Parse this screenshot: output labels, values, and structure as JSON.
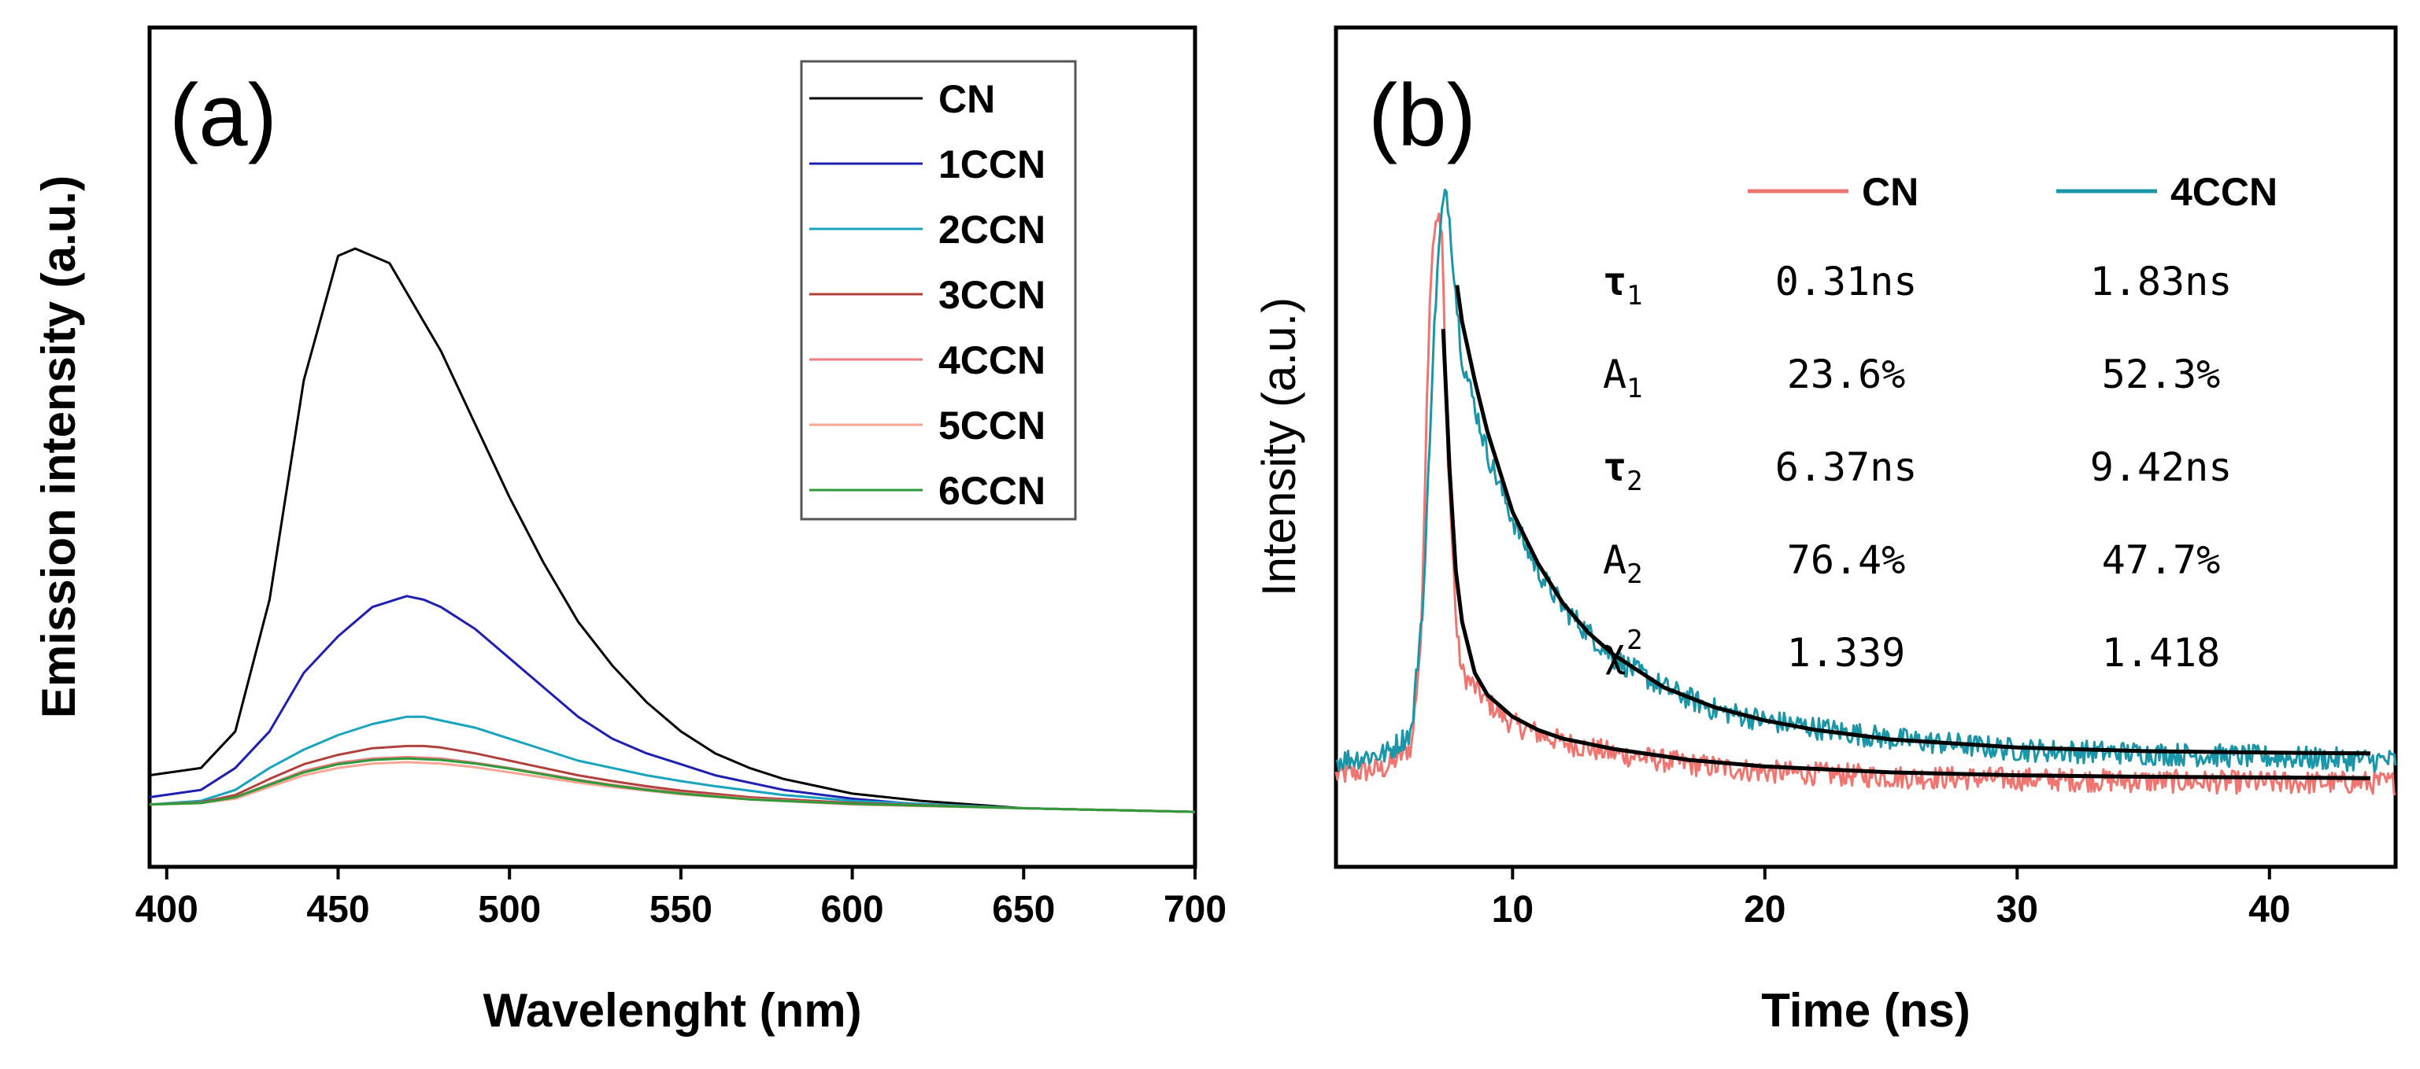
{
  "chart_data": [
    {
      "type": "line",
      "panel_label": "(a)",
      "xlabel": "Wavelenght (nm)",
      "ylabel": "Emission intensity (a.u.)",
      "xlim": [
        395,
        700
      ],
      "ylim": [
        0,
        100
      ],
      "xticks": [
        400,
        450,
        500,
        550,
        600,
        650,
        700
      ],
      "yticks_shown": false,
      "legend_position": "top-right",
      "series": [
        {
          "name": "CN",
          "color": "#000000",
          "points": [
            [
              395,
              8
            ],
            [
              410,
              9
            ],
            [
              420,
              14
            ],
            [
              430,
              32
            ],
            [
              440,
              62
            ],
            [
              450,
              79
            ],
            [
              455,
              80
            ],
            [
              465,
              78
            ],
            [
              475,
              70
            ],
            [
              480,
              66
            ],
            [
              490,
              56
            ],
            [
              500,
              46
            ],
            [
              510,
              37
            ],
            [
              520,
              29
            ],
            [
              530,
              23
            ],
            [
              540,
              18
            ],
            [
              550,
              14
            ],
            [
              560,
              11
            ],
            [
              570,
              9
            ],
            [
              580,
              7.5
            ],
            [
              600,
              5.5
            ],
            [
              620,
              4.5
            ],
            [
              650,
              3.5
            ],
            [
              700,
              3
            ]
          ]
        },
        {
          "name": "1CCN",
          "color": "#1f1fb0",
          "points": [
            [
              395,
              5
            ],
            [
              410,
              6
            ],
            [
              420,
              9
            ],
            [
              430,
              14
            ],
            [
              440,
              22
            ],
            [
              450,
              27
            ],
            [
              460,
              31
            ],
            [
              470,
              32.5
            ],
            [
              475,
              32
            ],
            [
              480,
              31
            ],
            [
              490,
              28
            ],
            [
              500,
              24
            ],
            [
              510,
              20
            ],
            [
              520,
              16
            ],
            [
              530,
              13
            ],
            [
              540,
              11
            ],
            [
              550,
              9.5
            ],
            [
              560,
              8
            ],
            [
              580,
              6
            ],
            [
              600,
              4.8
            ],
            [
              620,
              4
            ],
            [
              650,
              3.5
            ],
            [
              700,
              3
            ]
          ]
        },
        {
          "name": "2CCN",
          "color": "#1aa3bf",
          "points": [
            [
              395,
              4
            ],
            [
              410,
              4.5
            ],
            [
              420,
              6
            ],
            [
              430,
              9
            ],
            [
              440,
              11.5
            ],
            [
              450,
              13.5
            ],
            [
              460,
              15
            ],
            [
              470,
              16
            ],
            [
              475,
              16
            ],
            [
              480,
              15.5
            ],
            [
              490,
              14.5
            ],
            [
              500,
              13
            ],
            [
              510,
              11.5
            ],
            [
              520,
              10
            ],
            [
              530,
              9
            ],
            [
              540,
              8
            ],
            [
              550,
              7.2
            ],
            [
              560,
              6.5
            ],
            [
              580,
              5.3
            ],
            [
              600,
              4.5
            ],
            [
              650,
              3.5
            ],
            [
              700,
              3
            ]
          ]
        },
        {
          "name": "3CCN",
          "color": "#b0413b",
          "points": [
            [
              395,
              4
            ],
            [
              410,
              4.3
            ],
            [
              420,
              5.3
            ],
            [
              430,
              7.5
            ],
            [
              440,
              9.5
            ],
            [
              450,
              10.8
            ],
            [
              460,
              11.7
            ],
            [
              470,
              12
            ],
            [
              475,
              12
            ],
            [
              480,
              11.8
            ],
            [
              490,
              11
            ],
            [
              500,
              10
            ],
            [
              510,
              9
            ],
            [
              520,
              8
            ],
            [
              530,
              7.2
            ],
            [
              540,
              6.5
            ],
            [
              550,
              5.9
            ],
            [
              570,
              5
            ],
            [
              600,
              4.2
            ],
            [
              650,
              3.5
            ],
            [
              700,
              3
            ]
          ]
        },
        {
          "name": "4CCN",
          "color": "#e87d82",
          "points": [
            [
              395,
              4
            ],
            [
              410,
              4.2
            ],
            [
              420,
              5
            ],
            [
              430,
              6.8
            ],
            [
              440,
              8.6
            ],
            [
              450,
              9.7
            ],
            [
              460,
              10.3
            ],
            [
              470,
              10.5
            ],
            [
              480,
              10.3
            ],
            [
              490,
              9.7
            ],
            [
              500,
              9
            ],
            [
              510,
              8.2
            ],
            [
              520,
              7.4
            ],
            [
              530,
              6.7
            ],
            [
              540,
              6.1
            ],
            [
              550,
              5.6
            ],
            [
              570,
              4.8
            ],
            [
              600,
              4.1
            ],
            [
              650,
              3.5
            ],
            [
              700,
              3
            ]
          ]
        },
        {
          "name": "5CCN",
          "color": "#f7a594",
          "points": [
            [
              395,
              4
            ],
            [
              410,
              4.2
            ],
            [
              420,
              4.8
            ],
            [
              430,
              6.4
            ],
            [
              440,
              8
            ],
            [
              450,
              9
            ],
            [
              460,
              9.6
            ],
            [
              470,
              9.8
            ],
            [
              480,
              9.6
            ],
            [
              490,
              9.1
            ],
            [
              500,
              8.4
            ],
            [
              510,
              7.7
            ],
            [
              520,
              7
            ],
            [
              530,
              6.4
            ],
            [
              540,
              5.9
            ],
            [
              550,
              5.4
            ],
            [
              570,
              4.7
            ],
            [
              600,
              4
            ],
            [
              650,
              3.5
            ],
            [
              700,
              3
            ]
          ]
        },
        {
          "name": "6CCN",
          "color": "#2e9a3a",
          "points": [
            [
              395,
              4
            ],
            [
              410,
              4.2
            ],
            [
              420,
              5
            ],
            [
              430,
              6.7
            ],
            [
              440,
              8.4
            ],
            [
              450,
              9.5
            ],
            [
              460,
              10.1
            ],
            [
              470,
              10.3
            ],
            [
              480,
              10.1
            ],
            [
              490,
              9.6
            ],
            [
              500,
              8.9
            ],
            [
              510,
              8.1
            ],
            [
              520,
              7.3
            ],
            [
              530,
              6.6
            ],
            [
              540,
              6
            ],
            [
              550,
              5.5
            ],
            [
              570,
              4.7
            ],
            [
              600,
              4.1
            ],
            [
              650,
              3.5
            ],
            [
              700,
              3
            ]
          ]
        }
      ]
    },
    {
      "type": "line",
      "panel_label": "(b)",
      "xlabel": "Time (ns)",
      "ylabel": "Intensity (a.u.)",
      "xlim": [
        3,
        45
      ],
      "ylim": [
        0,
        100
      ],
      "xticks": [
        10,
        20,
        30,
        40
      ],
      "yticks_shown": false,
      "legend_position": "top",
      "series": [
        {
          "name": "CN",
          "color": "#f07470",
          "noisy": true,
          "points": [
            [
              3,
              8
            ],
            [
              5,
              9
            ],
            [
              6,
              12
            ],
            [
              6.4,
              28
            ],
            [
              6.6,
              60
            ],
            [
              6.8,
              80
            ],
            [
              7,
              85
            ],
            [
              7.2,
              82
            ],
            [
              7.4,
              55
            ],
            [
              7.6,
              40
            ],
            [
              7.8,
              27
            ],
            [
              8,
              22
            ],
            [
              9,
              18
            ],
            [
              10,
              15
            ],
            [
              12,
              12.5
            ],
            [
              14,
              11
            ],
            [
              17,
              9.5
            ],
            [
              20,
              8.5
            ],
            [
              25,
              7.8
            ],
            [
              30,
              7.5
            ],
            [
              35,
              7.2
            ],
            [
              40,
              7
            ],
            [
              45,
              7
            ]
          ]
        },
        {
          "name": "4CCN",
          "color": "#1a96a8",
          "noisy": true,
          "points": [
            [
              3,
              10
            ],
            [
              5,
              11
            ],
            [
              6,
              14
            ],
            [
              6.5,
              34
            ],
            [
              6.8,
              62
            ],
            [
              7,
              76
            ],
            [
              7.2,
              85
            ],
            [
              7.4,
              88
            ],
            [
              7.6,
              80
            ],
            [
              7.8,
              72
            ],
            [
              8,
              65
            ],
            [
              9,
              52
            ],
            [
              10,
              43
            ],
            [
              11,
              36
            ],
            [
              12,
              31
            ],
            [
              14,
              24
            ],
            [
              16,
              20
            ],
            [
              18,
              17
            ],
            [
              20,
              15.5
            ],
            [
              25,
              13
            ],
            [
              30,
              11.5
            ],
            [
              35,
              11
            ],
            [
              40,
              10.5
            ],
            [
              45,
              10
            ]
          ]
        },
        {
          "name": "CN fit",
          "color": "#000000",
          "legend": false,
          "width": 5,
          "points": [
            [
              7.25,
              69
            ],
            [
              7.5,
              50
            ],
            [
              7.75,
              36
            ],
            [
              8,
              29
            ],
            [
              8.5,
              22
            ],
            [
              9,
              19
            ],
            [
              10,
              16
            ],
            [
              11,
              14.2
            ],
            [
              12,
              13
            ],
            [
              14,
              11.6
            ],
            [
              17,
              10.1
            ],
            [
              20,
              9.2
            ],
            [
              25,
              8.4
            ],
            [
              30,
              8
            ],
            [
              35,
              7.8
            ],
            [
              40,
              7.7
            ],
            [
              44,
              7.6
            ]
          ]
        },
        {
          "name": "4CCN fit",
          "color": "#000000",
          "legend": false,
          "width": 5,
          "points": [
            [
              7.8,
              75
            ],
            [
              8,
              70
            ],
            [
              8.5,
              62
            ],
            [
              9,
              55
            ],
            [
              10,
              44
            ],
            [
              11,
              37
            ],
            [
              12,
              31.5
            ],
            [
              13,
              27.5
            ],
            [
              14,
              24.5
            ],
            [
              16,
              20
            ],
            [
              18,
              17.3
            ],
            [
              20,
              15.5
            ],
            [
              22,
              14.2
            ],
            [
              25,
              12.9
            ],
            [
              30,
              11.8
            ],
            [
              35,
              11.3
            ],
            [
              40,
              11.1
            ],
            [
              44,
              11
            ]
          ]
        }
      ],
      "fit_table": {
        "headers": [
          "CN",
          "4CCN"
        ],
        "rows": [
          {
            "param": "τ",
            "sub": "1",
            "bold": true,
            "cn": "0.31ns",
            "ccn": "1.83ns"
          },
          {
            "param": "A",
            "sub": "1",
            "bold": false,
            "cn": "23.6%",
            "ccn": "52.3%"
          },
          {
            "param": "τ",
            "sub": "2",
            "bold": true,
            "cn": "6.37ns",
            "ccn": "9.42ns"
          },
          {
            "param": "A",
            "sub": "2",
            "bold": false,
            "cn": "76.4%",
            "ccn": "47.7%"
          },
          {
            "param": "χ",
            "sup": "2",
            "bold": false,
            "cn": "1.339",
            "ccn": "1.418"
          }
        ]
      }
    }
  ]
}
